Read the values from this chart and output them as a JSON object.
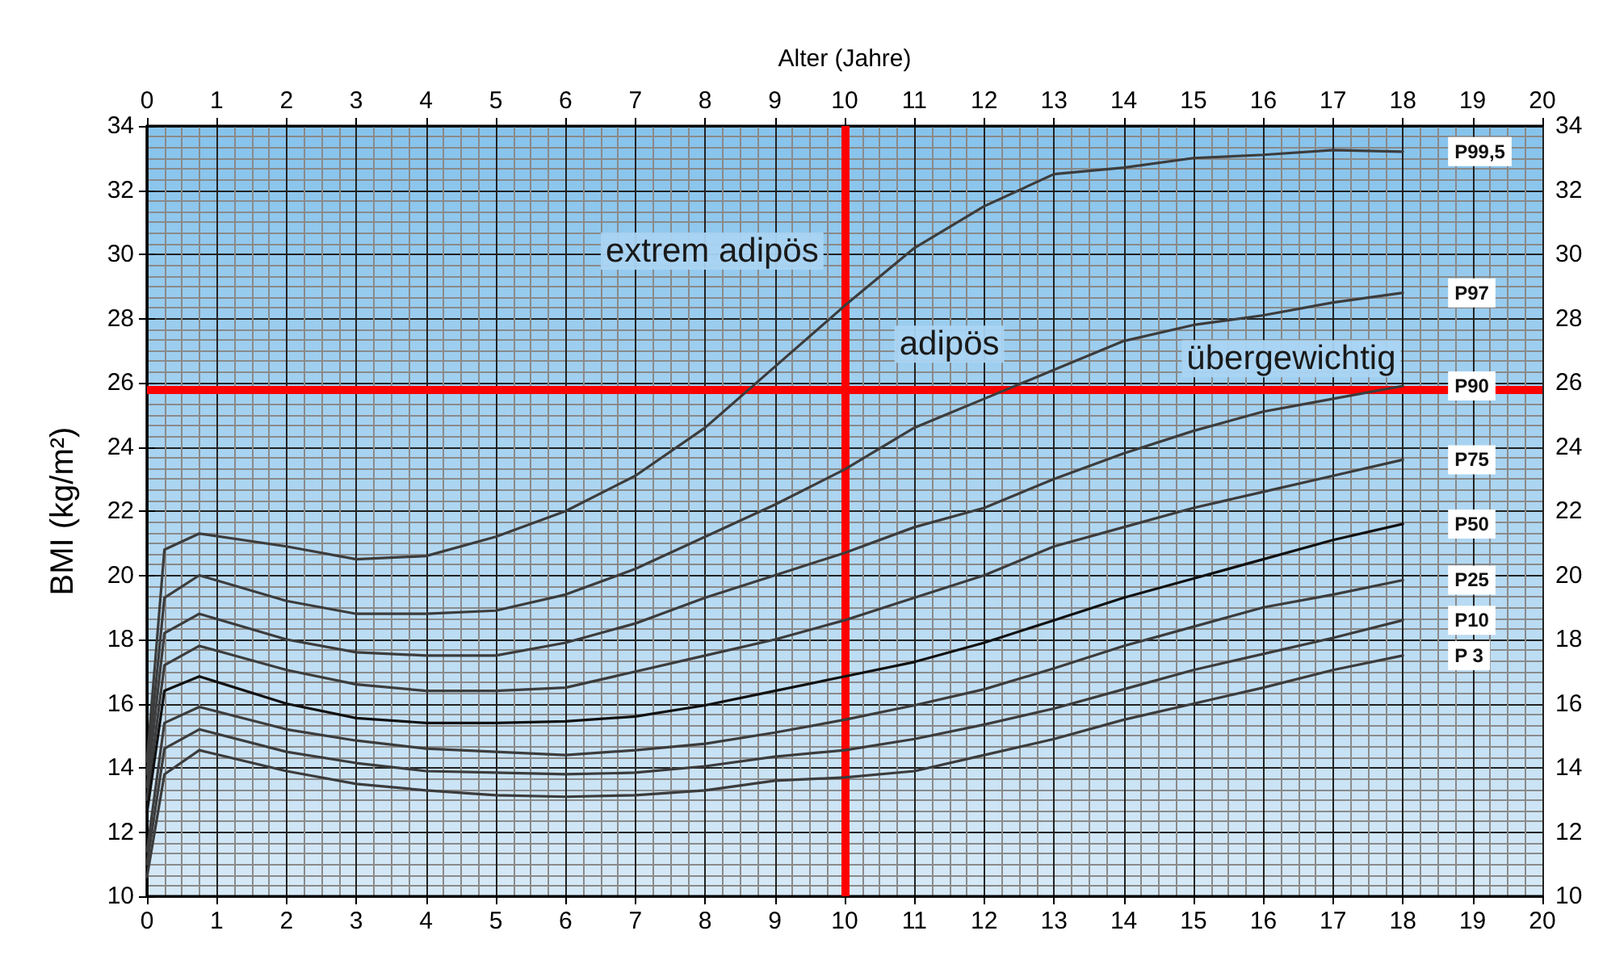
{
  "chart_data": {
    "type": "line",
    "x2label": "Alter (Jahre)",
    "ylabel": "BMI (kg/m²)",
    "xlim": [
      0,
      20
    ],
    "xticks": [
      0,
      1,
      2,
      3,
      4,
      5,
      6,
      7,
      8,
      9,
      10,
      11,
      12,
      13,
      14,
      15,
      16,
      17,
      18,
      19,
      20
    ],
    "x2lim": [
      0,
      20
    ],
    "x2ticks": [
      0,
      1,
      2,
      3,
      4,
      5,
      6,
      7,
      8,
      9,
      10,
      11,
      12,
      13,
      14,
      15,
      16,
      17,
      18,
      19,
      20
    ],
    "ylim": [
      10,
      34
    ],
    "yticks": [
      10,
      12,
      14,
      16,
      18,
      20,
      22,
      24,
      26,
      28,
      30,
      32,
      34
    ],
    "y2lim": [
      10,
      34
    ],
    "y2ticks": [
      10,
      12,
      14,
      16,
      18,
      20,
      22,
      24,
      26,
      28,
      30,
      32,
      34
    ],
    "grid": true,
    "legend": false,
    "marker": "none",
    "line_style": "solid",
    "x": [
      0,
      0.25,
      0.75,
      2,
      3,
      4,
      5,
      6,
      7,
      8,
      9,
      10,
      11,
      12,
      13,
      14,
      15,
      16,
      17,
      18
    ],
    "series": [
      {
        "name": "P99,5",
        "color": "#3c3c3c",
        "values": [
          14.2,
          20.8,
          21.3,
          20.9,
          20.5,
          20.6,
          21.2,
          22.0,
          23.1,
          24.6,
          26.5,
          28.4,
          30.2,
          31.5,
          32.5,
          32.7,
          33.0,
          33.1,
          33.25,
          33.2
        ]
      },
      {
        "name": "P97",
        "color": "#3c3c3c",
        "values": [
          13.8,
          19.3,
          20.0,
          19.2,
          18.8,
          18.8,
          18.9,
          19.4,
          20.2,
          21.2,
          22.2,
          23.3,
          24.6,
          25.5,
          26.4,
          27.3,
          27.8,
          28.1,
          28.5,
          28.8
        ]
      },
      {
        "name": "P90",
        "color": "#3c3c3c",
        "values": [
          13.4,
          18.2,
          18.8,
          18.0,
          17.6,
          17.5,
          17.5,
          17.9,
          18.5,
          19.3,
          20.0,
          20.7,
          21.5,
          22.1,
          23.0,
          23.8,
          24.5,
          25.1,
          25.5,
          25.9
        ]
      },
      {
        "name": "P75",
        "color": "#3c3c3c",
        "values": [
          13.0,
          17.2,
          17.8,
          17.05,
          16.6,
          16.4,
          16.4,
          16.5,
          17.0,
          17.5,
          18.0,
          18.6,
          19.3,
          20.0,
          20.9,
          21.5,
          22.1,
          22.6,
          23.1,
          23.6
        ]
      },
      {
        "name": "P50",
        "color": "#111111",
        "values": [
          12.6,
          16.4,
          16.85,
          16.0,
          15.55,
          15.4,
          15.4,
          15.45,
          15.6,
          15.95,
          16.4,
          16.85,
          17.3,
          17.9,
          18.6,
          19.3,
          19.9,
          20.5,
          21.1,
          21.6
        ]
      },
      {
        "name": "P25",
        "color": "#3c3c3c",
        "values": [
          11.4,
          15.4,
          15.9,
          15.2,
          14.85,
          14.6,
          14.5,
          14.4,
          14.55,
          14.75,
          15.1,
          15.5,
          15.95,
          16.45,
          17.1,
          17.8,
          18.4,
          19.0,
          19.4,
          19.85
        ]
      },
      {
        "name": "P10",
        "color": "#3c3c3c",
        "values": [
          11.0,
          14.6,
          15.2,
          14.5,
          14.15,
          13.9,
          13.85,
          13.8,
          13.85,
          14.05,
          14.35,
          14.55,
          14.9,
          15.35,
          15.85,
          16.45,
          17.05,
          17.55,
          18.05,
          18.6
        ]
      },
      {
        "name": "P 3",
        "color": "#3c3c3c",
        "values": [
          10.6,
          13.8,
          14.55,
          13.9,
          13.5,
          13.3,
          13.15,
          13.1,
          13.15,
          13.3,
          13.6,
          13.7,
          13.9,
          14.4,
          14.9,
          15.5,
          16.0,
          16.5,
          17.05,
          17.5
        ]
      }
    ],
    "ref_lines": [
      {
        "axis": "x",
        "value": 10,
        "color": "#ff0000"
      },
      {
        "axis": "y",
        "value": 25.8,
        "color": "#ff0000"
      }
    ],
    "annotations": [
      "extrem adipös",
      "adipös",
      "übergewichtig"
    ]
  }
}
